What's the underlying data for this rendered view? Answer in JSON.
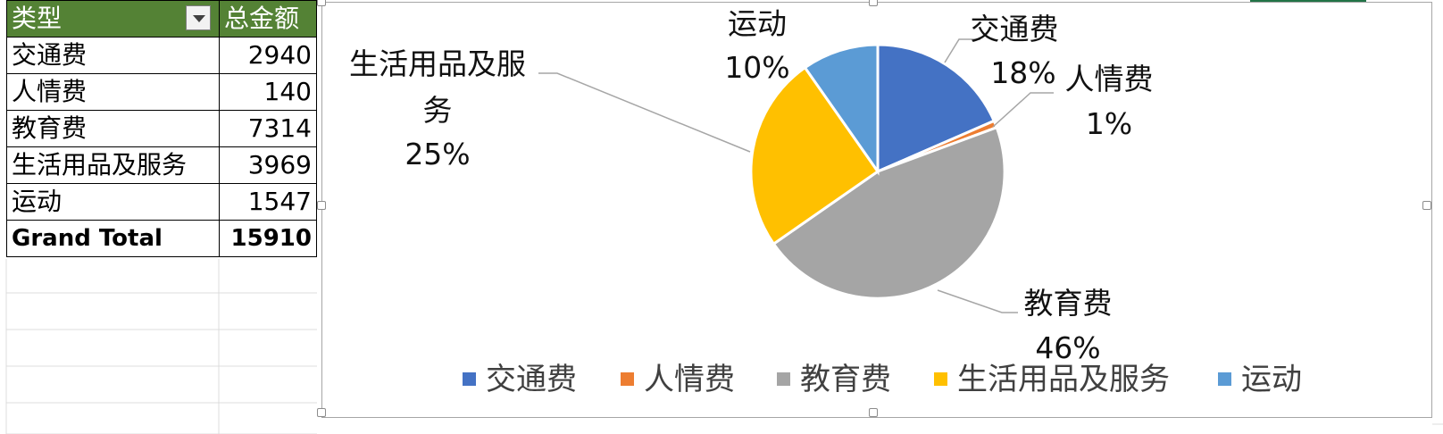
{
  "pivot_table": {
    "header": {
      "type_label": "类型",
      "amount_label": "总金额"
    },
    "rows": [
      {
        "label": "交通费",
        "value": "2940"
      },
      {
        "label": "人情费",
        "value": "140"
      },
      {
        "label": "教育费",
        "value": "7314"
      },
      {
        "label": "生活用品及服务",
        "value": "3969"
      },
      {
        "label": "运动",
        "value": "1547"
      }
    ],
    "total": {
      "label": "Grand Total",
      "value": "15910"
    }
  },
  "chart_data": {
    "type": "pie",
    "categories": [
      "交通费",
      "人情费",
      "教育费",
      "生活用品及服务",
      "运动"
    ],
    "values": [
      2940,
      140,
      7314,
      3969,
      1547
    ],
    "data_labels": [
      "18%",
      "1%",
      "46%",
      "25%",
      "10%"
    ],
    "colors": [
      "#4472c4",
      "#ed7d31",
      "#a5a5a5",
      "#ffc000",
      "#5b9bd5"
    ],
    "legend_position": "bottom"
  }
}
